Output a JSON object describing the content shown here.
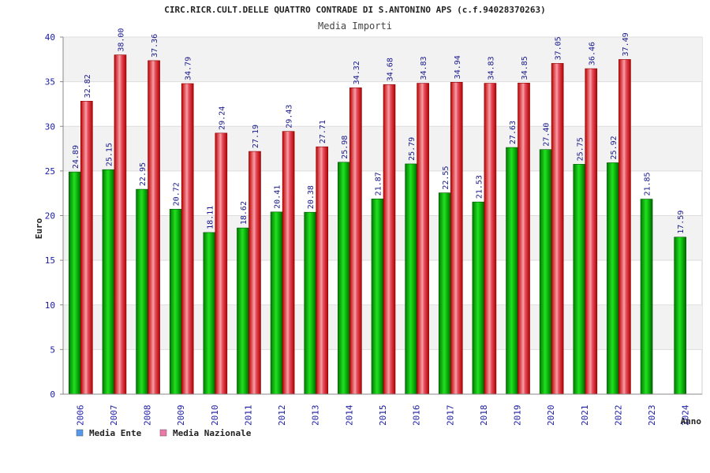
{
  "chart_data": {
    "type": "bar",
    "title": "CIRC.RICR.CULT.DELLE QUATTRO CONTRADE DI S.ANTONINO APS (c.f.94028370263)",
    "subtitle": "Media Importi",
    "xlabel": "Anno",
    "ylabel": "Euro",
    "ylim": [
      0,
      40
    ],
    "yticks": [
      0,
      5,
      10,
      15,
      20,
      25,
      30,
      35,
      40
    ],
    "categories": [
      "2006",
      "2007",
      "2008",
      "2009",
      "2010",
      "2011",
      "2012",
      "2013",
      "2014",
      "2015",
      "2016",
      "2017",
      "2018",
      "2019",
      "2020",
      "2021",
      "2022",
      "2023",
      "2024"
    ],
    "series": [
      {
        "name": "Media Ente",
        "color": "#00aa00",
        "values": [
          24.89,
          25.15,
          22.95,
          20.72,
          18.11,
          18.62,
          20.41,
          20.38,
          25.98,
          21.87,
          25.79,
          22.55,
          21.53,
          27.63,
          27.4,
          25.75,
          25.92,
          21.85,
          17.59
        ],
        "labels": [
          "24.89",
          "25.15",
          "22.95",
          "20.72",
          "18.11",
          "18.62",
          "20.41",
          "20.38",
          "25.98",
          "21.87",
          "25.79",
          "22.55",
          "21.53",
          "27.63",
          "27.40",
          "25.75",
          "25.92",
          "21.85",
          "17.59"
        ]
      },
      {
        "name": "Media Nazionale",
        "color": "#dd1111",
        "values": [
          32.82,
          38.0,
          37.36,
          34.79,
          29.24,
          27.19,
          29.43,
          27.71,
          34.32,
          34.68,
          34.83,
          34.94,
          34.83,
          34.85,
          37.05,
          36.46,
          37.49,
          null,
          null
        ],
        "labels": [
          "32.82",
          "38.00",
          "37.36",
          "34.79",
          "29.24",
          "27.19",
          "29.43",
          "27.71",
          "34.32",
          "34.68",
          "34.83",
          "34.94",
          "34.83",
          "34.85",
          "37.05",
          "36.46",
          "37.49",
          null,
          null
        ]
      }
    ],
    "legend": [
      {
        "label": "Media Ente",
        "swatch_color": "#5599ee"
      },
      {
        "label": "Media Nazionale",
        "swatch_color": "#ee77aa"
      }
    ],
    "grid": true
  }
}
